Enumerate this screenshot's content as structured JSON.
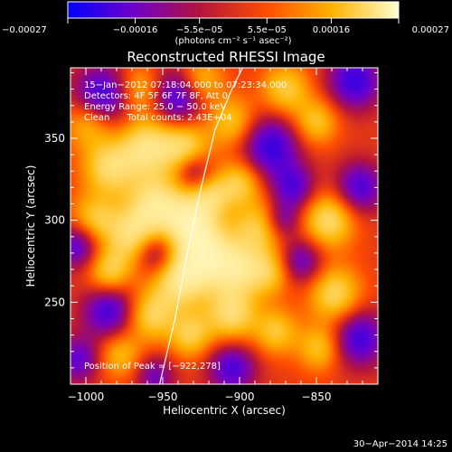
{
  "chart_data": {
    "type": "heatmap",
    "title": "Reconstructed RHESSI Image",
    "xlabel": "Heliocentric X (arcsec)",
    "ylabel": "Heliocentric Y (arcsec)",
    "xlim": [
      -1010,
      -810
    ],
    "ylim": [
      200,
      393
    ],
    "x_ticks": [
      -1000,
      -950,
      -900,
      -850
    ],
    "x_tick_labels": [
      "−1000",
      "−950",
      "−900",
      "−850"
    ],
    "y_ticks": [
      250,
      300,
      350
    ],
    "y_tick_labels": [
      "250",
      "300",
      "350"
    ],
    "colorbar": {
      "range": [
        -0.00027,
        0.00027
      ],
      "ticks": [
        -0.00027,
        -0.00016,
        -5.5e-05,
        5.5e-05,
        0.00016,
        0.00027
      ],
      "tick_labels": [
        "−0.00027",
        "−0.00016",
        "−5.5e−05",
        "5.5e−05",
        "0.00016",
        "0.00027"
      ],
      "units": "(photons cm⁻² s⁻¹ asec⁻²)",
      "colors": [
        "#0000ff",
        "#6f00c8",
        "#b4143c",
        "#ff4d00",
        "#ffb300",
        "#ffffd0"
      ]
    },
    "info_lines": [
      "15−Jan−2012 07:18:04.000 to 07:23:34.000",
      "Detectors: 4F 5F 6F 7F 8F, Att 0",
      "Energy Range: 25.0 − 50.0 keV",
      "Clean      Total counts: 2.43E+04"
    ],
    "peak_label": "Position of Peak = [−922,278]",
    "peak": [
      -922,
      278
    ],
    "limb": [
      [
        -952,
        200
      ],
      [
        -942,
        240
      ],
      [
        -934,
        280
      ],
      [
        -925,
        320
      ],
      [
        -916,
        355
      ],
      [
        -905,
        380
      ],
      [
        -898,
        393
      ]
    ],
    "blobs": [
      {
        "x": -922,
        "y": 278,
        "a": 1.0,
        "s": 14
      },
      {
        "x": -932,
        "y": 300,
        "a": 0.8,
        "s": 12
      },
      {
        "x": -940,
        "y": 262,
        "a": 0.7,
        "s": 12
      },
      {
        "x": -955,
        "y": 310,
        "a": 0.8,
        "s": 13
      },
      {
        "x": -970,
        "y": 290,
        "a": 0.7,
        "s": 12
      },
      {
        "x": -960,
        "y": 345,
        "a": 0.8,
        "s": 13
      },
      {
        "x": -935,
        "y": 345,
        "a": 0.65,
        "s": 11
      },
      {
        "x": -985,
        "y": 332,
        "a": 0.7,
        "s": 12
      },
      {
        "x": -995,
        "y": 300,
        "a": 0.6,
        "s": 11
      },
      {
        "x": -985,
        "y": 268,
        "a": 0.65,
        "s": 10
      },
      {
        "x": -998,
        "y": 360,
        "a": 0.6,
        "s": 11
      },
      {
        "x": -958,
        "y": 242,
        "a": 0.65,
        "s": 11
      },
      {
        "x": -932,
        "y": 230,
        "a": 0.6,
        "s": 10
      },
      {
        "x": -905,
        "y": 243,
        "a": 0.75,
        "s": 12
      },
      {
        "x": -900,
        "y": 270,
        "a": 0.6,
        "s": 11
      },
      {
        "x": -888,
        "y": 295,
        "a": 0.6,
        "s": 12
      },
      {
        "x": -880,
        "y": 268,
        "a": 0.55,
        "s": 10
      },
      {
        "x": -900,
        "y": 323,
        "a": 0.6,
        "s": 10
      },
      {
        "x": -905,
        "y": 360,
        "a": 0.55,
        "s": 11
      },
      {
        "x": -925,
        "y": 385,
        "a": 0.55,
        "s": 10
      },
      {
        "x": -870,
        "y": 380,
        "a": 0.6,
        "s": 11
      },
      {
        "x": -850,
        "y": 360,
        "a": 0.55,
        "s": 10
      },
      {
        "x": -842,
        "y": 300,
        "a": 0.75,
        "s": 12
      },
      {
        "x": -838,
        "y": 255,
        "a": 0.7,
        "s": 12
      },
      {
        "x": -848,
        "y": 222,
        "a": 0.55,
        "s": 10
      },
      {
        "x": -876,
        "y": 232,
        "a": 0.55,
        "s": 10
      },
      {
        "x": -978,
        "y": 218,
        "a": 0.5,
        "s": 10
      },
      {
        "x": -965,
        "y": 380,
        "a": 0.5,
        "s": 10
      },
      {
        "x": -918,
        "y": 315,
        "a": 0.5,
        "s": 9
      },
      {
        "x": -990,
        "y": 375,
        "a": -0.85,
        "s": 13
      },
      {
        "x": -940,
        "y": 375,
        "a": -0.75,
        "s": 12
      },
      {
        "x": -955,
        "y": 280,
        "a": -0.55,
        "s": 9
      },
      {
        "x": -930,
        "y": 330,
        "a": -0.45,
        "s": 8
      },
      {
        "x": -985,
        "y": 245,
        "a": -0.75,
        "s": 12
      },
      {
        "x": -880,
        "y": 345,
        "a": -0.8,
        "s": 13
      },
      {
        "x": -865,
        "y": 320,
        "a": -0.65,
        "s": 10
      },
      {
        "x": -825,
        "y": 385,
        "a": -0.8,
        "s": 12
      },
      {
        "x": -822,
        "y": 320,
        "a": -0.7,
        "s": 11
      },
      {
        "x": -822,
        "y": 228,
        "a": -0.75,
        "s": 12
      },
      {
        "x": -860,
        "y": 275,
        "a": -0.6,
        "s": 10
      },
      {
        "x": -905,
        "y": 210,
        "a": -0.7,
        "s": 11
      },
      {
        "x": -1005,
        "y": 285,
        "a": -0.7,
        "s": 10
      },
      {
        "x": -1005,
        "y": 215,
        "a": -0.6,
        "s": 10
      },
      {
        "x": -955,
        "y": 205,
        "a": -0.5,
        "s": 9
      },
      {
        "x": -872,
        "y": 300,
        "a": -0.5,
        "s": 8
      }
    ]
  },
  "footer": {
    "date": "30−Apr−2014 14:25"
  }
}
